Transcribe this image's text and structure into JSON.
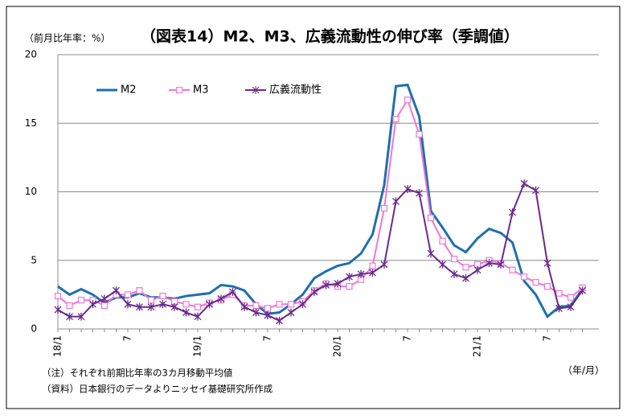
{
  "chart_data": {
    "type": "line",
    "title": "（図表14）M2、M3、広義流動性の伸び率（季調値）",
    "y_label": "（前月比年率：%）",
    "x_label": "（年/月）",
    "notes": [
      "（注）それぞれ前期比年率の3カ月移動平均値",
      "（資料）日本銀行のデータよりニッセイ基礎研究所作成"
    ],
    "categories": [
      "18/1",
      null,
      null,
      null,
      null,
      null,
      "7",
      null,
      null,
      null,
      null,
      null,
      "19/1",
      null,
      null,
      null,
      null,
      null,
      "7",
      null,
      null,
      null,
      null,
      null,
      "20/1",
      null,
      null,
      null,
      null,
      null,
      "7",
      null,
      null,
      null,
      null,
      null,
      "21/1",
      null,
      null,
      null,
      null,
      null,
      "7",
      null,
      null,
      null
    ],
    "series": [
      {
        "name": "M2",
        "color": "#1f6fae",
        "marker": "none",
        "values": [
          3.1,
          2.5,
          2.9,
          2.5,
          1.9,
          2.3,
          2.3,
          2.6,
          2.3,
          2.3,
          2.2,
          2.4,
          2.5,
          2.6,
          3.2,
          3.1,
          2.8,
          1.8,
          1.1,
          1.2,
          1.8,
          2.5,
          3.7,
          4.2,
          4.6,
          4.8,
          5.5,
          6.9,
          10.5,
          17.7,
          17.8,
          15.5,
          8.6,
          7.4,
          6.1,
          5.6,
          6.6,
          7.3,
          7.0,
          6.3,
          3.5,
          2.5,
          0.9,
          1.6,
          1.7,
          2.9
        ]
      },
      {
        "name": "M3",
        "color": "#f075d6",
        "marker": "square",
        "values": [
          2.4,
          1.7,
          2.1,
          2.1,
          1.7,
          2.5,
          2.5,
          2.8,
          2.1,
          2.4,
          2.0,
          1.8,
          1.6,
          1.9,
          2.1,
          2.5,
          1.7,
          1.7,
          1.5,
          1.8,
          1.8,
          2.0,
          2.8,
          3.3,
          3.1,
          3.1,
          3.6,
          4.6,
          8.8,
          15.3,
          16.7,
          14.2,
          8.1,
          6.4,
          5.1,
          4.5,
          4.7,
          5.0,
          4.8,
          4.3,
          3.8,
          3.4,
          3.1,
          2.6,
          2.3,
          3.0
        ]
      },
      {
        "name": "広義流動性",
        "color": "#6a2a8c",
        "marker": "star",
        "values": [
          1.4,
          0.9,
          0.9,
          1.8,
          2.2,
          2.8,
          1.8,
          1.6,
          1.6,
          1.8,
          1.6,
          1.2,
          0.9,
          1.8,
          2.2,
          2.7,
          1.6,
          1.2,
          1.0,
          0.6,
          1.2,
          1.8,
          2.7,
          3.2,
          3.3,
          3.8,
          4.0,
          4.1,
          4.7,
          9.3,
          10.2,
          9.9,
          5.5,
          4.7,
          4.0,
          3.7,
          4.3,
          4.8,
          4.7,
          8.5,
          10.6,
          10.1,
          4.8,
          1.5,
          1.6,
          2.8
        ]
      }
    ],
    "ylim": [
      0,
      20
    ],
    "yticks": [
      0,
      5,
      10,
      15,
      20
    ],
    "grid": true,
    "legend": "top-left"
  }
}
